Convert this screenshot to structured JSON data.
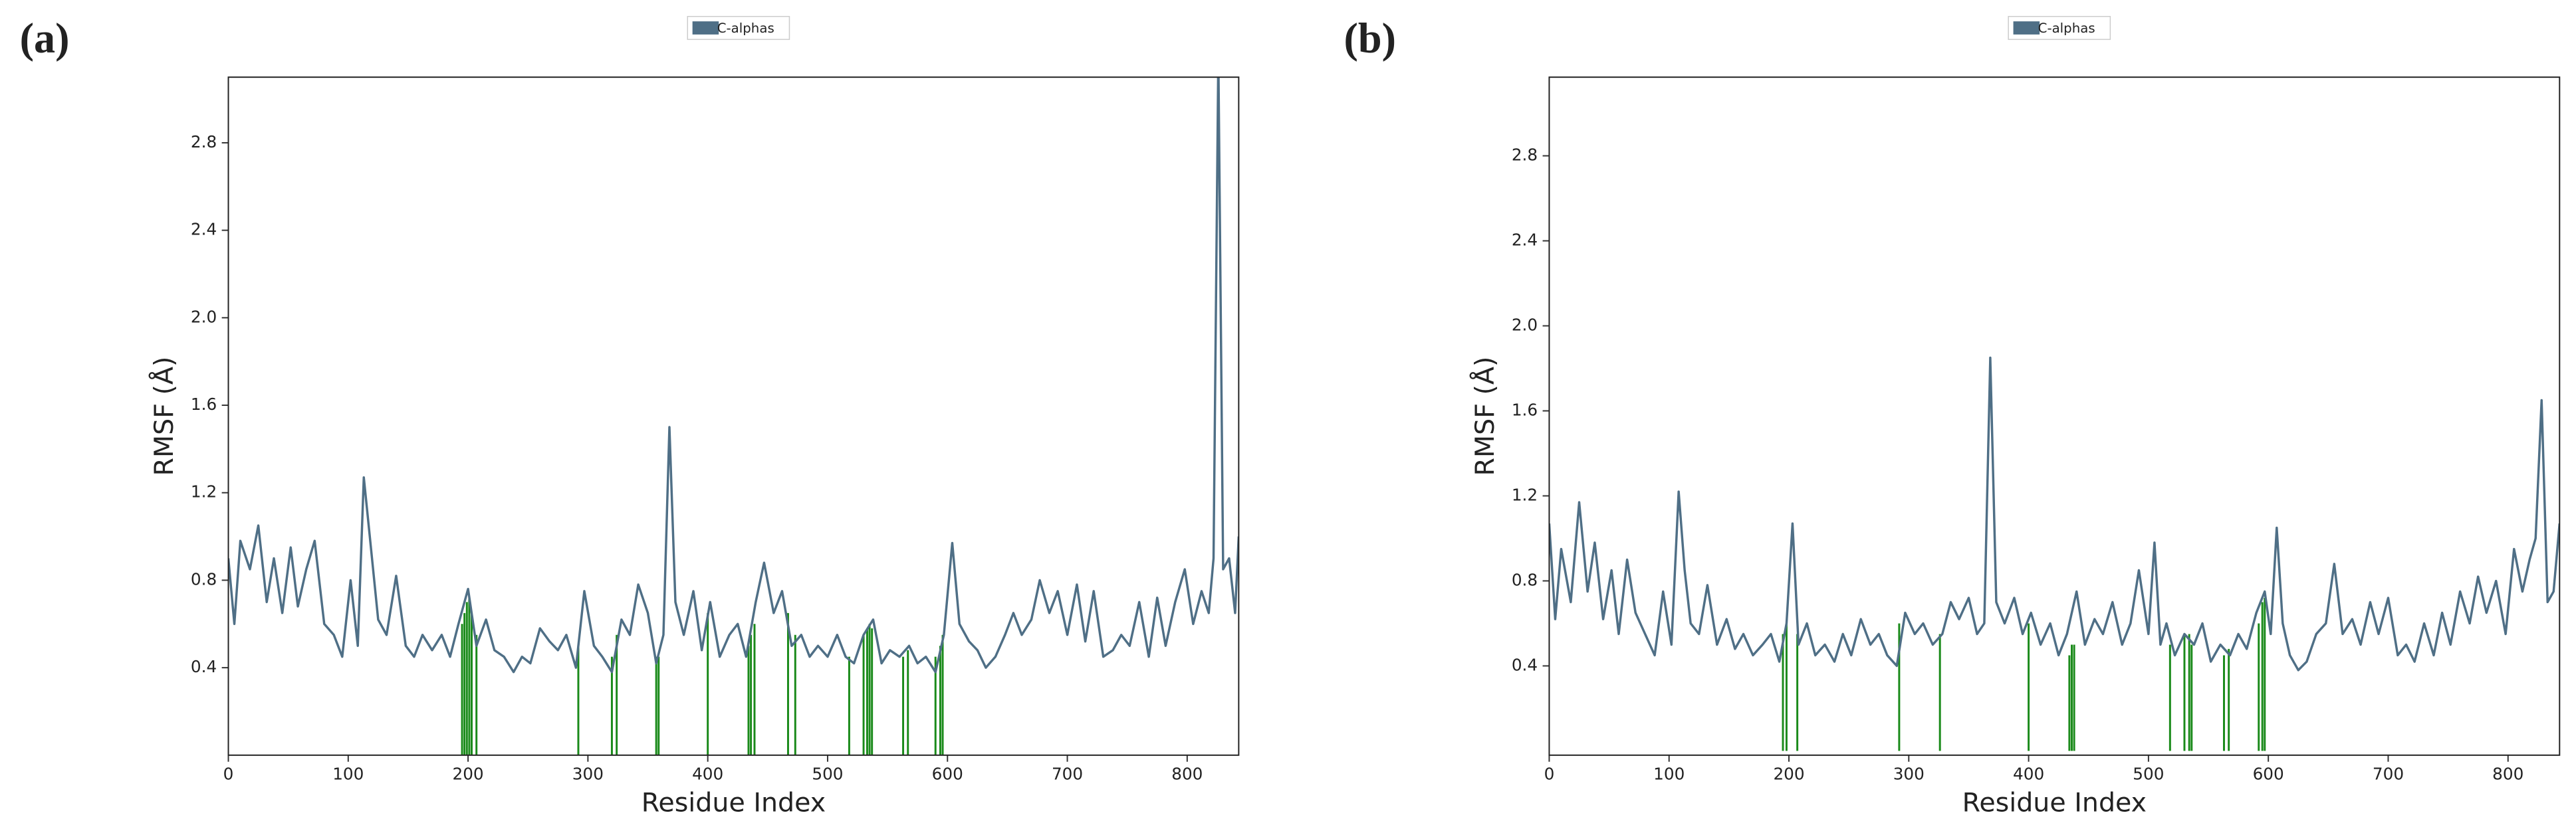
{
  "chart_data": [
    {
      "type": "line",
      "panel": "(a)",
      "xlabel": "Residue Index",
      "ylabel": "RMSF (Å)",
      "x": [
        0,
        5,
        10,
        18,
        25,
        32,
        38,
        45,
        52,
        58,
        65,
        72,
        80,
        88,
        95,
        102,
        108,
        113,
        118,
        125,
        132,
        140,
        148,
        155,
        162,
        170,
        178,
        185,
        192,
        200,
        207,
        215,
        222,
        230,
        238,
        245,
        252,
        260,
        268,
        275,
        282,
        290,
        297,
        305,
        312,
        320,
        328,
        335,
        342,
        350,
        357,
        363,
        368,
        373,
        380,
        388,
        395,
        402,
        410,
        418,
        425,
        432,
        440,
        447,
        455,
        462,
        470,
        478,
        485,
        492,
        500,
        508,
        515,
        522,
        530,
        538,
        545,
        552,
        560,
        568,
        575,
        582,
        590,
        597,
        604,
        610,
        618,
        625,
        632,
        640,
        648,
        655,
        662,
        670,
        677,
        685,
        692,
        700,
        708,
        715,
        722,
        730,
        738,
        745,
        752,
        760,
        768,
        775,
        782,
        790,
        798,
        805,
        812,
        818,
        822,
        826,
        830,
        835,
        840,
        843
      ],
      "series": [
        {
          "name": "C-alphas",
          "color": "#4f6f86",
          "values": [
            0.9,
            0.6,
            0.98,
            0.85,
            1.05,
            0.7,
            0.9,
            0.65,
            0.95,
            0.68,
            0.85,
            0.98,
            0.6,
            0.55,
            0.45,
            0.8,
            0.5,
            1.27,
            1.0,
            0.62,
            0.55,
            0.82,
            0.5,
            0.45,
            0.55,
            0.48,
            0.55,
            0.45,
            0.6,
            0.76,
            0.5,
            0.62,
            0.48,
            0.45,
            0.38,
            0.45,
            0.42,
            0.58,
            0.52,
            0.48,
            0.55,
            0.4,
            0.75,
            0.5,
            0.45,
            0.38,
            0.62,
            0.55,
            0.78,
            0.65,
            0.42,
            0.55,
            1.5,
            0.7,
            0.55,
            0.75,
            0.48,
            0.7,
            0.45,
            0.55,
            0.6,
            0.45,
            0.7,
            0.88,
            0.65,
            0.75,
            0.5,
            0.55,
            0.45,
            0.5,
            0.45,
            0.55,
            0.45,
            0.42,
            0.55,
            0.62,
            0.42,
            0.48,
            0.45,
            0.5,
            0.42,
            0.45,
            0.38,
            0.55,
            0.97,
            0.6,
            0.52,
            0.48,
            0.4,
            0.45,
            0.55,
            0.65,
            0.55,
            0.62,
            0.8,
            0.65,
            0.75,
            0.55,
            0.78,
            0.52,
            0.75,
            0.45,
            0.48,
            0.55,
            0.5,
            0.7,
            0.45,
            0.72,
            0.5,
            0.7,
            0.85,
            0.6,
            0.75,
            0.65,
            0.9,
            3.2,
            0.85,
            0.9,
            0.65,
            1.0
          ]
        }
      ],
      "contacts": {
        "color": "#1a8a1a",
        "x": [
          195,
          197,
          199,
          201,
          203,
          207,
          292,
          320,
          324,
          357,
          359,
          400,
          434,
          436,
          439,
          467,
          473,
          518,
          530,
          533,
          535,
          537,
          563,
          567,
          590,
          594,
          596
        ],
        "values": [
          0.6,
          0.65,
          0.7,
          0.72,
          0.65,
          0.55,
          0.5,
          0.45,
          0.55,
          0.45,
          0.45,
          0.65,
          0.5,
          0.55,
          0.6,
          0.65,
          0.55,
          0.45,
          0.55,
          0.58,
          0.6,
          0.58,
          0.45,
          0.48,
          0.45,
          0.5,
          0.55
        ]
      },
      "xlim": [
        0,
        843
      ],
      "ylim": [
        0,
        3.1
      ],
      "xticks": [
        0,
        100,
        200,
        300,
        400,
        500,
        600,
        700,
        800
      ],
      "yticks": [
        0.4,
        0.8,
        1.2,
        1.6,
        {
          "value": 2,
          "label": "2.0"
        },
        2.4,
        2.8
      ]
    },
    {
      "type": "line",
      "panel": "(b)",
      "xlabel": "Residue Index",
      "ylabel": "RMSF (Å)",
      "x": [
        0,
        5,
        10,
        18,
        25,
        32,
        38,
        45,
        52,
        58,
        65,
        72,
        80,
        88,
        95,
        102,
        108,
        113,
        118,
        125,
        132,
        140,
        148,
        155,
        162,
        170,
        178,
        185,
        192,
        198,
        203,
        208,
        215,
        222,
        230,
        238,
        245,
        252,
        260,
        268,
        275,
        282,
        290,
        297,
        305,
        312,
        320,
        328,
        335,
        342,
        350,
        357,
        363,
        368,
        373,
        380,
        388,
        395,
        402,
        410,
        418,
        425,
        432,
        440,
        447,
        455,
        462,
        470,
        478,
        485,
        492,
        500,
        505,
        510,
        515,
        522,
        530,
        538,
        545,
        552,
        560,
        568,
        575,
        582,
        590,
        597,
        602,
        607,
        612,
        618,
        625,
        632,
        640,
        648,
        655,
        662,
        670,
        677,
        685,
        692,
        700,
        708,
        715,
        722,
        730,
        738,
        745,
        752,
        760,
        768,
        775,
        782,
        790,
        798,
        805,
        812,
        818,
        823,
        828,
        833,
        838,
        843
      ],
      "series": [
        {
          "name": "C-alphas",
          "color": "#4f6f86",
          "values": [
            1.07,
            0.62,
            0.95,
            0.7,
            1.17,
            0.75,
            0.98,
            0.62,
            0.85,
            0.55,
            0.9,
            0.65,
            0.55,
            0.45,
            0.75,
            0.5,
            1.22,
            0.85,
            0.6,
            0.55,
            0.78,
            0.5,
            0.62,
            0.48,
            0.55,
            0.45,
            0.5,
            0.55,
            0.42,
            0.6,
            1.07,
            0.5,
            0.6,
            0.45,
            0.5,
            0.42,
            0.55,
            0.45,
            0.62,
            0.5,
            0.55,
            0.45,
            0.4,
            0.65,
            0.55,
            0.6,
            0.5,
            0.55,
            0.7,
            0.62,
            0.72,
            0.55,
            0.6,
            1.85,
            0.7,
            0.6,
            0.72,
            0.55,
            0.65,
            0.5,
            0.6,
            0.45,
            0.55,
            0.75,
            0.5,
            0.62,
            0.55,
            0.7,
            0.5,
            0.6,
            0.85,
            0.55,
            0.98,
            0.5,
            0.6,
            0.45,
            0.55,
            0.5,
            0.6,
            0.42,
            0.5,
            0.45,
            0.55,
            0.48,
            0.65,
            0.75,
            0.55,
            1.05,
            0.6,
            0.45,
            0.38,
            0.42,
            0.55,
            0.6,
            0.88,
            0.55,
            0.62,
            0.5,
            0.7,
            0.55,
            0.72,
            0.45,
            0.5,
            0.42,
            0.6,
            0.45,
            0.65,
            0.5,
            0.75,
            0.6,
            0.82,
            0.65,
            0.8,
            0.55,
            0.95,
            0.75,
            0.9,
            1.0,
            1.65,
            0.7,
            0.75,
            1.07
          ]
        }
      ],
      "contacts": {
        "color": "#1a8a1a",
        "x": [
          195,
          198,
          207,
          292,
          326,
          400,
          434,
          436,
          438,
          518,
          530,
          534,
          536,
          563,
          567,
          592,
          595,
          597
        ],
        "values": [
          0.55,
          0.6,
          0.55,
          0.6,
          0.55,
          0.6,
          0.45,
          0.5,
          0.5,
          0.5,
          0.55,
          0.55,
          0.5,
          0.45,
          0.48,
          0.6,
          0.7,
          0.72
        ]
      },
      "xlim": [
        0,
        843
      ],
      "ylim": [
        -0.02,
        3.17
      ],
      "xticks": [
        0,
        100,
        200,
        300,
        400,
        500,
        600,
        700,
        800
      ],
      "yticks": [
        0.4,
        0.8,
        1.2,
        1.6,
        {
          "value": 2,
          "label": "2.0"
        },
        2.4,
        2.8
      ]
    }
  ]
}
